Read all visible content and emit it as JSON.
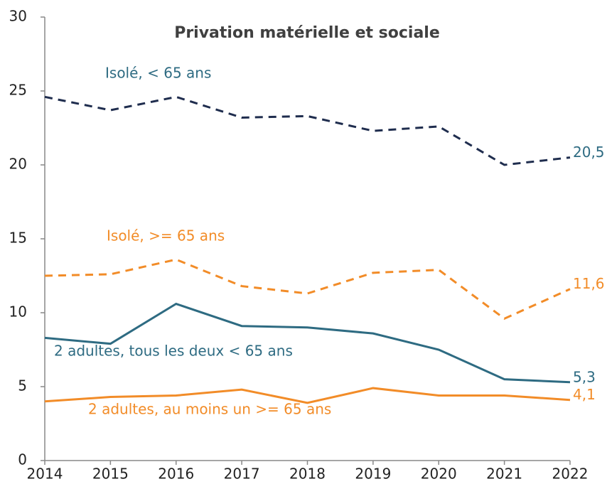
{
  "chart_data": {
    "type": "line",
    "title": "Privation matérielle et sociale",
    "x": [
      2014,
      2015,
      2016,
      2017,
      2018,
      2019,
      2020,
      2021,
      2022
    ],
    "xlim": [
      2014,
      2022
    ],
    "xticks": [
      2014,
      2015,
      2016,
      2017,
      2018,
      2019,
      2020,
      2021,
      2022
    ],
    "ylim": [
      0,
      30
    ],
    "yticks": [
      0,
      5,
      10,
      15,
      20,
      25,
      30
    ],
    "grid": false,
    "series": [
      {
        "name": "Isolé, < 65 ans",
        "color": "#1f2d4e",
        "label_color": "#2e6b82",
        "dashed": true,
        "values": [
          24.6,
          23.7,
          24.6,
          23.2,
          23.3,
          22.3,
          22.6,
          20.0,
          20.5
        ],
        "value_labels": [
          null,
          null,
          null,
          null,
          null,
          null,
          null,
          null,
          "20,5"
        ]
      },
      {
        "name": "Isolé, >= 65 ans",
        "color": "#f28c28",
        "label_color": "#f28c28",
        "dashed": true,
        "values": [
          12.5,
          12.6,
          13.6,
          11.8,
          11.3,
          12.7,
          12.9,
          9.6,
          11.6
        ],
        "value_labels": [
          null,
          null,
          null,
          null,
          null,
          null,
          null,
          null,
          "11,6"
        ]
      },
      {
        "name": "2 adultes, tous les deux < 65 ans",
        "color": "#2e6b82",
        "label_color": "#2e6b82",
        "dashed": false,
        "values": [
          8.3,
          7.9,
          10.6,
          9.1,
          9.0,
          8.6,
          7.5,
          5.5,
          5.3
        ],
        "value_labels": [
          null,
          null,
          null,
          null,
          null,
          null,
          null,
          null,
          "5,3"
        ]
      },
      {
        "name": "2 adultes, au moins un >= 65 ans",
        "color": "#f28c28",
        "label_color": "#f28c28",
        "dashed": false,
        "values": [
          4.0,
          4.3,
          4.4,
          4.8,
          3.9,
          4.9,
          4.4,
          4.4,
          4.1
        ],
        "value_labels": [
          null,
          null,
          null,
          null,
          null,
          null,
          null,
          null,
          "4,1"
        ]
      }
    ]
  }
}
